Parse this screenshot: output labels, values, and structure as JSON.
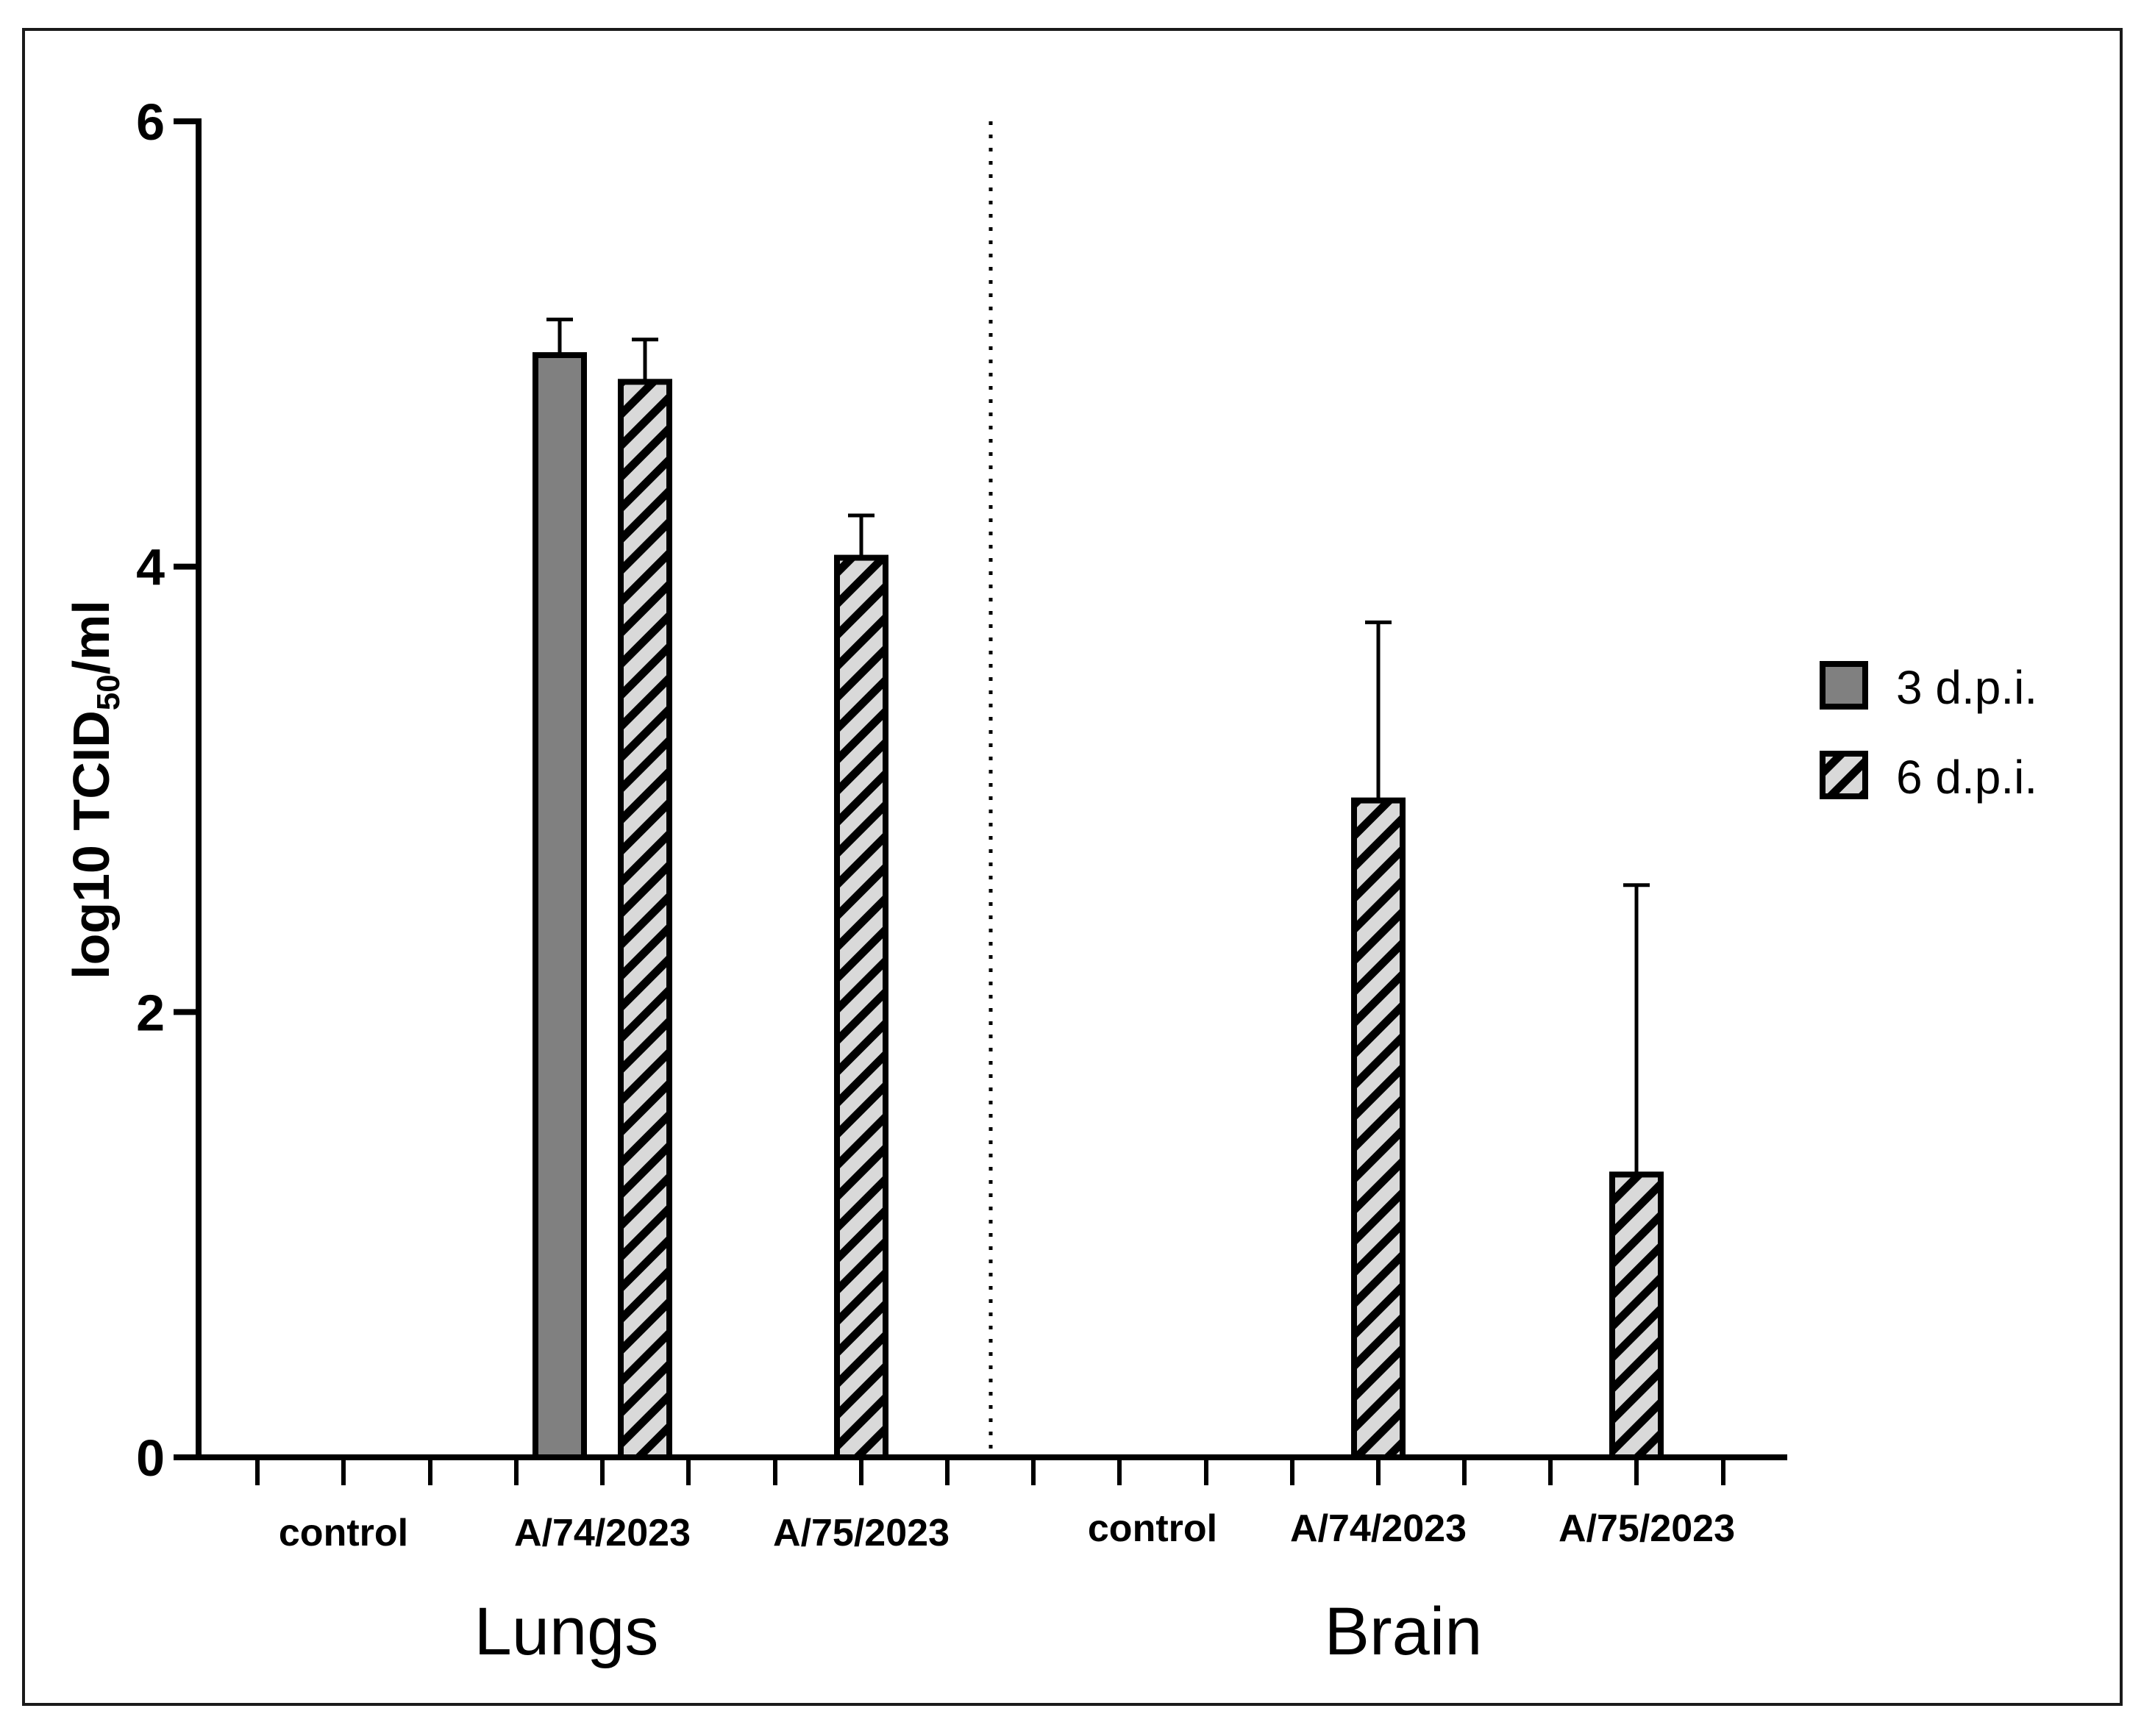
{
  "chart_data": {
    "type": "bar",
    "ylabel": "log10 TCID",
    "ylabel_subscript": "50",
    "ylabel_suffix": "/ml",
    "ylim": [
      0,
      6
    ],
    "yticks": [
      "0",
      "2",
      "4",
      "6"
    ],
    "groups": [
      {
        "name": "Lungs",
        "categories": [
          "control",
          "A/74/2023",
          "A/75/2023"
        ]
      },
      {
        "name": "Brain",
        "categories": [
          "control",
          "A/74/2023",
          "A/75/2023"
        ]
      }
    ],
    "series": [
      {
        "name": "3 d.p.i.",
        "color": "#808080",
        "pattern": "solid",
        "values": [
          0,
          4.95,
          0,
          0,
          0,
          0
        ],
        "errors": [
          0,
          0.16,
          0,
          0,
          0,
          0
        ]
      },
      {
        "name": "6 d.p.i.",
        "color": "#d9d9d9",
        "pattern": "hatched",
        "values": [
          0,
          4.83,
          4.04,
          0,
          2.95,
          1.27
        ],
        "errors": [
          0,
          0.19,
          0.19,
          0,
          0.8,
          1.3
        ]
      }
    ],
    "separator": "dotted",
    "legend_position": "right"
  }
}
